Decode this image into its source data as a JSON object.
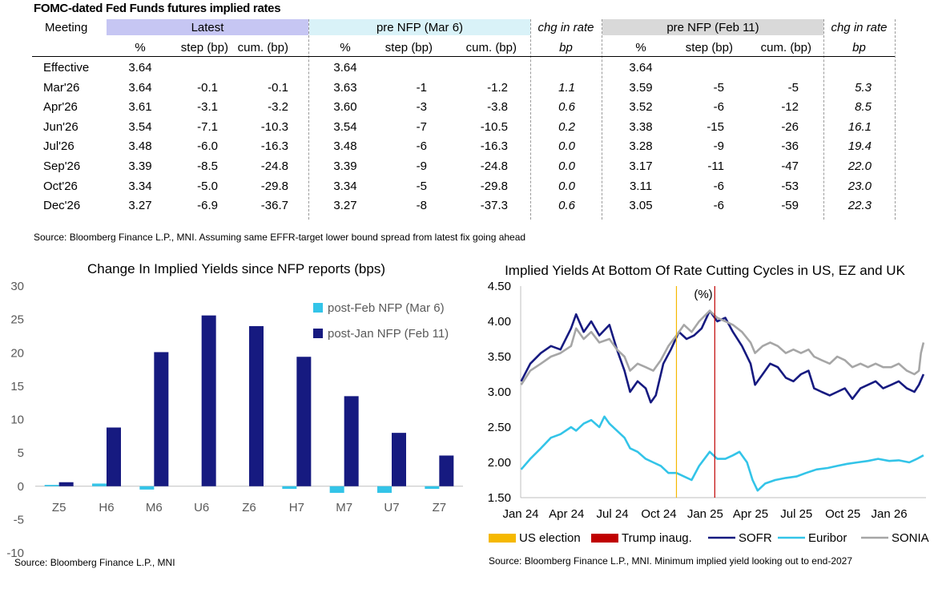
{
  "table": {
    "title": "FOMC-dated Fed Funds futures implied rates",
    "group_headers": {
      "meeting": "Meeting",
      "latest": "Latest",
      "pre_nfp_mar": "pre NFP (Mar 6)",
      "chg1": "chg in rate",
      "pre_nfp_feb": "pre NFP (Feb 11)",
      "chg2": "chg in rate"
    },
    "sub_headers": {
      "pct": "%",
      "step": "step (bp)",
      "cum": "cum. (bp)",
      "bp": "bp"
    },
    "band_colors": {
      "latest": "#c6c6f3",
      "pre_nfp_mar": "#d9f2f8",
      "pre_nfp_feb": "#d9d9d9"
    },
    "rows": [
      {
        "meeting": "Effective",
        "latest_pct": "3.64",
        "latest_step": "",
        "latest_cum": "",
        "mar_pct": "3.64",
        "mar_step": "",
        "mar_cum": "",
        "chg1": "",
        "feb_pct": "3.64",
        "feb_step": "",
        "feb_cum": "",
        "chg2": ""
      },
      {
        "meeting": "Mar'26",
        "latest_pct": "3.64",
        "latest_step": "-0.1",
        "latest_cum": "-0.1",
        "mar_pct": "3.63",
        "mar_step": "-1",
        "mar_cum": "-1.2",
        "chg1": "1.1",
        "feb_pct": "3.59",
        "feb_step": "-5",
        "feb_cum": "-5",
        "chg2": "5.3"
      },
      {
        "meeting": "Apr'26",
        "latest_pct": "3.61",
        "latest_step": "-3.1",
        "latest_cum": "-3.2",
        "mar_pct": "3.60",
        "mar_step": "-3",
        "mar_cum": "-3.8",
        "chg1": "0.6",
        "feb_pct": "3.52",
        "feb_step": "-6",
        "feb_cum": "-12",
        "chg2": "8.5"
      },
      {
        "meeting": "Jun'26",
        "latest_pct": "3.54",
        "latest_step": "-7.1",
        "latest_cum": "-10.3",
        "mar_pct": "3.54",
        "mar_step": "-7",
        "mar_cum": "-10.5",
        "chg1": "0.2",
        "feb_pct": "3.38",
        "feb_step": "-15",
        "feb_cum": "-26",
        "chg2": "16.1"
      },
      {
        "meeting": "Jul'26",
        "latest_pct": "3.48",
        "latest_step": "-6.0",
        "latest_cum": "-16.3",
        "mar_pct": "3.48",
        "mar_step": "-6",
        "mar_cum": "-16.3",
        "chg1": "0.0",
        "feb_pct": "3.28",
        "feb_step": "-9",
        "feb_cum": "-36",
        "chg2": "19.4"
      },
      {
        "meeting": "Sep'26",
        "latest_pct": "3.39",
        "latest_step": "-8.5",
        "latest_cum": "-24.8",
        "mar_pct": "3.39",
        "mar_step": "-9",
        "mar_cum": "-24.8",
        "chg1": "0.0",
        "feb_pct": "3.17",
        "feb_step": "-11",
        "feb_cum": "-47",
        "chg2": "22.0"
      },
      {
        "meeting": "Oct'26",
        "latest_pct": "3.34",
        "latest_step": "-5.0",
        "latest_cum": "-29.8",
        "mar_pct": "3.34",
        "mar_step": "-5",
        "mar_cum": "-29.8",
        "chg1": "0.0",
        "feb_pct": "3.11",
        "feb_step": "-6",
        "feb_cum": "-53",
        "chg2": "23.0"
      },
      {
        "meeting": "Dec'26",
        "latest_pct": "3.27",
        "latest_step": "-6.9",
        "latest_cum": "-36.7",
        "mar_pct": "3.27",
        "mar_step": "-8",
        "mar_cum": "-37.3",
        "chg1": "0.6",
        "feb_pct": "3.05",
        "feb_step": "-6",
        "feb_cum": "-59",
        "chg2": "22.3"
      }
    ],
    "source": "Source: Bloomberg Finance L.P., MNI. Assuming same  EFFR-target lower bound spread from latest fix going ahead"
  },
  "chart_data": [
    {
      "type": "bar",
      "title": "Change In Implied Yields since NFP reports (bps)",
      "categories": [
        "Z5",
        "H6",
        "M6",
        "U6",
        "Z6",
        "H7",
        "M7",
        "U7",
        "Z7"
      ],
      "series": [
        {
          "name": "post-Feb NFP (Mar 6)",
          "color": "#33c4e8",
          "values": [
            0.2,
            0.4,
            -0.5,
            0.0,
            0.0,
            -0.4,
            -1.0,
            -1.0,
            -0.4
          ]
        },
        {
          "name": "post-Jan NFP (Feb 11)",
          "color": "#161a80",
          "values": [
            0.6,
            8.8,
            20.1,
            25.6,
            24.0,
            19.4,
            13.5,
            8.0,
            4.6
          ]
        }
      ],
      "ylim": [
        -10,
        30
      ],
      "yticks": [
        -10,
        -5,
        0,
        5,
        10,
        15,
        20,
        25,
        30
      ],
      "legend": "right",
      "source": "Source: Bloomberg Finance L.P., MNI"
    },
    {
      "type": "line",
      "title": "Implied Yields At Bottom Of Rate Cutting Cycles in US, EZ and UK",
      "y_unit_label": "(%)",
      "ylim": [
        1.5,
        4.5
      ],
      "yticks": [
        "1.50",
        "2.00",
        "2.50",
        "3.00",
        "3.50",
        "4.00",
        "4.50"
      ],
      "xticks": [
        "Jan 24",
        "Apr 24",
        "Jul 24",
        "Oct 24",
        "Jan 25",
        "Apr 25",
        "Jul 25",
        "Oct 25",
        "Jan 26"
      ],
      "events": [
        {
          "name": "US election",
          "date": "2024-11-05",
          "color": "#f5b800"
        },
        {
          "name": "Trump inaug.",
          "date": "2025-01-20",
          "color": "#c00000"
        }
      ],
      "series": [
        {
          "name": "SOFR",
          "color": "#161a80",
          "points": [
            [
              "2024-01-02",
              3.15
            ],
            [
              "2024-01-20",
              3.4
            ],
            [
              "2024-02-10",
              3.55
            ],
            [
              "2024-03-01",
              3.65
            ],
            [
              "2024-03-20",
              3.6
            ],
            [
              "2024-04-10",
              3.9
            ],
            [
              "2024-04-20",
              4.1
            ],
            [
              "2024-05-05",
              3.85
            ],
            [
              "2024-05-20",
              4.0
            ],
            [
              "2024-06-05",
              3.8
            ],
            [
              "2024-06-25",
              3.95
            ],
            [
              "2024-07-10",
              3.6
            ],
            [
              "2024-07-25",
              3.3
            ],
            [
              "2024-08-05",
              3.0
            ],
            [
              "2024-08-20",
              3.15
            ],
            [
              "2024-09-05",
              3.05
            ],
            [
              "2024-09-15",
              2.85
            ],
            [
              "2024-09-25",
              2.95
            ],
            [
              "2024-10-10",
              3.4
            ],
            [
              "2024-10-25",
              3.6
            ],
            [
              "2024-11-10",
              3.85
            ],
            [
              "2024-11-25",
              3.75
            ],
            [
              "2024-12-10",
              3.8
            ],
            [
              "2024-12-25",
              3.9
            ],
            [
              "2025-01-10",
              4.15
            ],
            [
              "2025-01-25",
              4.0
            ],
            [
              "2025-02-10",
              4.05
            ],
            [
              "2025-02-25",
              3.85
            ],
            [
              "2025-03-15",
              3.65
            ],
            [
              "2025-04-01",
              3.4
            ],
            [
              "2025-04-10",
              3.1
            ],
            [
              "2025-04-25",
              3.25
            ],
            [
              "2025-05-10",
              3.4
            ],
            [
              "2025-05-25",
              3.35
            ],
            [
              "2025-06-10",
              3.2
            ],
            [
              "2025-06-25",
              3.15
            ],
            [
              "2025-07-10",
              3.25
            ],
            [
              "2025-07-25",
              3.3
            ],
            [
              "2025-08-05",
              3.05
            ],
            [
              "2025-08-20",
              3.0
            ],
            [
              "2025-09-05",
              2.95
            ],
            [
              "2025-09-20",
              3.0
            ],
            [
              "2025-10-05",
              3.05
            ],
            [
              "2025-10-20",
              2.9
            ],
            [
              "2025-11-05",
              3.05
            ],
            [
              "2025-11-20",
              3.1
            ],
            [
              "2025-12-05",
              3.15
            ],
            [
              "2025-12-20",
              3.05
            ],
            [
              "2026-01-05",
              3.1
            ],
            [
              "2026-01-20",
              3.15
            ],
            [
              "2026-02-05",
              3.05
            ],
            [
              "2026-02-20",
              3.0
            ],
            [
              "2026-03-01",
              3.1
            ],
            [
              "2026-03-10",
              3.25
            ]
          ]
        },
        {
          "name": "Euribor",
          "color": "#33c4e8",
          "points": [
            [
              "2024-01-02",
              1.9
            ],
            [
              "2024-01-20",
              2.05
            ],
            [
              "2024-02-10",
              2.2
            ],
            [
              "2024-03-01",
              2.35
            ],
            [
              "2024-03-20",
              2.4
            ],
            [
              "2024-04-10",
              2.5
            ],
            [
              "2024-04-20",
              2.45
            ],
            [
              "2024-05-05",
              2.55
            ],
            [
              "2024-05-20",
              2.6
            ],
            [
              "2024-06-05",
              2.5
            ],
            [
              "2024-06-15",
              2.65
            ],
            [
              "2024-06-25",
              2.55
            ],
            [
              "2024-07-10",
              2.45
            ],
            [
              "2024-07-25",
              2.35
            ],
            [
              "2024-08-05",
              2.2
            ],
            [
              "2024-08-20",
              2.15
            ],
            [
              "2024-09-05",
              2.05
            ],
            [
              "2024-09-20",
              2.0
            ],
            [
              "2024-10-05",
              1.95
            ],
            [
              "2024-10-20",
              1.85
            ],
            [
              "2024-11-05",
              1.85
            ],
            [
              "2024-11-20",
              1.8
            ],
            [
              "2024-12-05",
              1.75
            ],
            [
              "2024-12-20",
              1.95
            ],
            [
              "2025-01-10",
              2.15
            ],
            [
              "2025-01-25",
              2.05
            ],
            [
              "2025-02-10",
              2.05
            ],
            [
              "2025-02-25",
              2.1
            ],
            [
              "2025-03-10",
              2.15
            ],
            [
              "2025-03-25",
              2.0
            ],
            [
              "2025-04-05",
              1.75
            ],
            [
              "2025-04-15",
              1.6
            ],
            [
              "2025-04-30",
              1.7
            ],
            [
              "2025-05-20",
              1.75
            ],
            [
              "2025-06-10",
              1.78
            ],
            [
              "2025-07-01",
              1.8
            ],
            [
              "2025-07-20",
              1.85
            ],
            [
              "2025-08-10",
              1.9
            ],
            [
              "2025-09-01",
              1.92
            ],
            [
              "2025-09-20",
              1.95
            ],
            [
              "2025-10-10",
              1.98
            ],
            [
              "2025-10-30",
              2.0
            ],
            [
              "2025-11-20",
              2.02
            ],
            [
              "2025-12-10",
              2.05
            ],
            [
              "2026-01-01",
              2.02
            ],
            [
              "2026-01-20",
              2.03
            ],
            [
              "2026-02-10",
              2.0
            ],
            [
              "2026-02-25",
              2.05
            ],
            [
              "2026-03-10",
              2.1
            ]
          ]
        },
        {
          "name": "SONIA",
          "color": "#a6a6a6",
          "points": [
            [
              "2024-01-02",
              3.1
            ],
            [
              "2024-01-20",
              3.3
            ],
            [
              "2024-02-10",
              3.4
            ],
            [
              "2024-03-01",
              3.5
            ],
            [
              "2024-03-20",
              3.55
            ],
            [
              "2024-04-10",
              3.65
            ],
            [
              "2024-04-20",
              3.9
            ],
            [
              "2024-05-05",
              3.75
            ],
            [
              "2024-05-20",
              3.85
            ],
            [
              "2024-06-05",
              3.7
            ],
            [
              "2024-06-25",
              3.75
            ],
            [
              "2024-07-10",
              3.6
            ],
            [
              "2024-07-25",
              3.5
            ],
            [
              "2024-08-05",
              3.3
            ],
            [
              "2024-08-20",
              3.4
            ],
            [
              "2024-09-05",
              3.35
            ],
            [
              "2024-09-20",
              3.3
            ],
            [
              "2024-10-05",
              3.45
            ],
            [
              "2024-10-20",
              3.65
            ],
            [
              "2024-11-05",
              3.8
            ],
            [
              "2024-11-20",
              3.95
            ],
            [
              "2024-12-05",
              3.85
            ],
            [
              "2024-12-20",
              4.0
            ],
            [
              "2025-01-10",
              4.15
            ],
            [
              "2025-01-25",
              4.05
            ],
            [
              "2025-02-10",
              4.0
            ],
            [
              "2025-02-25",
              3.95
            ],
            [
              "2025-03-15",
              3.85
            ],
            [
              "2025-04-01",
              3.7
            ],
            [
              "2025-04-10",
              3.55
            ],
            [
              "2025-04-25",
              3.65
            ],
            [
              "2025-05-10",
              3.7
            ],
            [
              "2025-05-25",
              3.65
            ],
            [
              "2025-06-10",
              3.55
            ],
            [
              "2025-06-25",
              3.6
            ],
            [
              "2025-07-10",
              3.55
            ],
            [
              "2025-07-25",
              3.6
            ],
            [
              "2025-08-05",
              3.5
            ],
            [
              "2025-08-20",
              3.45
            ],
            [
              "2025-09-05",
              3.4
            ],
            [
              "2025-09-20",
              3.5
            ],
            [
              "2025-10-05",
              3.45
            ],
            [
              "2025-10-20",
              3.35
            ],
            [
              "2025-11-05",
              3.4
            ],
            [
              "2025-11-20",
              3.35
            ],
            [
              "2025-12-05",
              3.4
            ],
            [
              "2025-12-20",
              3.35
            ],
            [
              "2026-01-05",
              3.35
            ],
            [
              "2026-01-20",
              3.4
            ],
            [
              "2026-02-05",
              3.3
            ],
            [
              "2026-02-20",
              3.25
            ],
            [
              "2026-03-01",
              3.3
            ],
            [
              "2026-03-05",
              3.55
            ],
            [
              "2026-03-10",
              3.7
            ]
          ]
        }
      ],
      "source": "Source: Bloomberg Finance L.P., MNI. Minimum implied yield looking out to end-2027"
    }
  ]
}
